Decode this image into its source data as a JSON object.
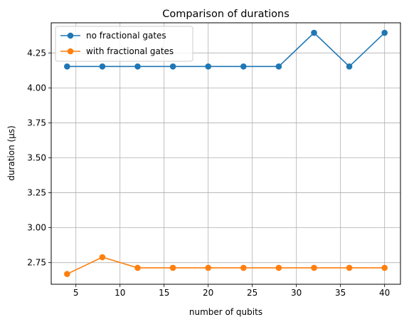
{
  "chart_data": {
    "type": "line",
    "title": "Comparison of durations",
    "xlabel": "number of qubits",
    "ylabel": "duration (µs)",
    "x": [
      4,
      8,
      12,
      16,
      20,
      24,
      28,
      32,
      36,
      40
    ],
    "xlim": [
      2.2,
      41.8
    ],
    "ylim": [
      2.5955,
      4.4655
    ],
    "xticks": [
      5,
      10,
      15,
      20,
      25,
      30,
      35,
      40
    ],
    "xtick_labels": [
      "5",
      "10",
      "15",
      "20",
      "25",
      "30",
      "35",
      "40"
    ],
    "yticks": [
      2.75,
      3.0,
      3.25,
      3.5,
      3.75,
      4.0,
      4.25
    ],
    "ytick_labels": [
      "2.75",
      "3.00",
      "3.25",
      "3.50",
      "3.75",
      "4.00",
      "4.25"
    ],
    "grid": true,
    "legend_position": "upper left",
    "series": [
      {
        "name": "no fractional gates",
        "color": "#1f77b4",
        "marker": "circle",
        "values": [
          4.153,
          4.153,
          4.153,
          4.153,
          4.153,
          4.153,
          4.153,
          4.394,
          4.153,
          4.394
        ]
      },
      {
        "name": "with fractional gates",
        "color": "#ff7f0e",
        "marker": "circle",
        "values": [
          2.669,
          2.789,
          2.713,
          2.713,
          2.713,
          2.713,
          2.713,
          2.713,
          2.713,
          2.713
        ]
      }
    ]
  }
}
